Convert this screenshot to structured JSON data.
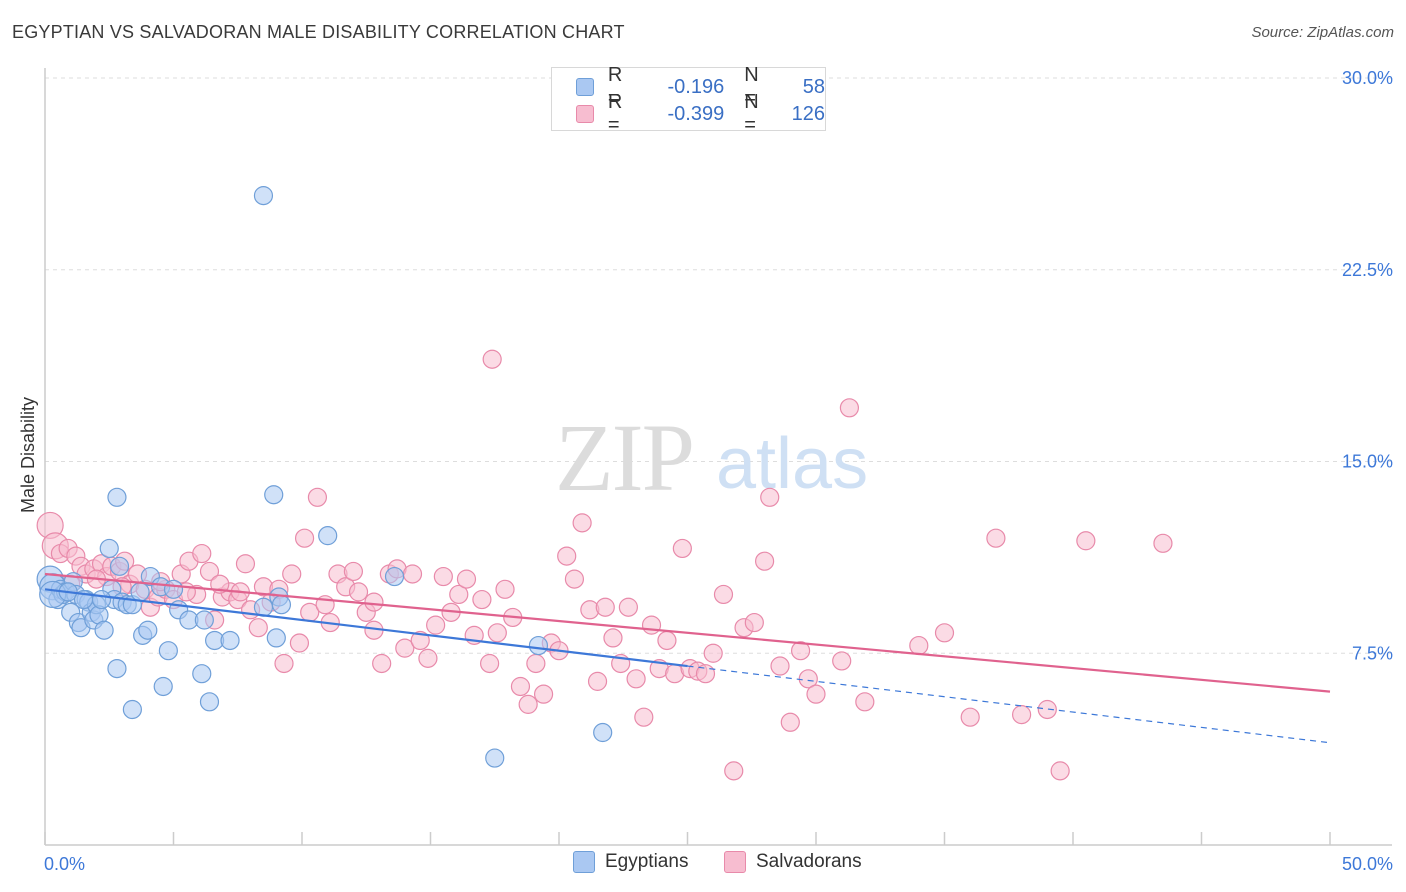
{
  "title": "EGYPTIAN VS SALVADORAN MALE DISABILITY CORRELATION CHART",
  "source": "Source: ZipAtlas.com",
  "watermark": {
    "zip": "ZIP",
    "atlas": "atlas"
  },
  "legend": {
    "rows": [
      {
        "r_label": "R =",
        "r_value": "-0.196",
        "n_label": "N =",
        "n_value": "58",
        "color": "#aac8f2",
        "border": "#6f9fd8"
      },
      {
        "r_label": "R =",
        "r_value": "-0.399",
        "n_label": "N =",
        "n_value": "126",
        "color": "#f7bdd0",
        "border": "#e88aaa"
      }
    ]
  },
  "bottom_legend": [
    {
      "label": "Egyptians",
      "color": "#aac8f2",
      "border": "#6f9fd8"
    },
    {
      "label": "Salvadorans",
      "color": "#f7bdd0",
      "border": "#e88aaa"
    }
  ],
  "chart_data": {
    "type": "scatter",
    "title": "EGYPTIAN VS SALVADORAN MALE DISABILITY CORRELATION CHART",
    "ylabel": "Male Disability",
    "xlabel": "",
    "xlim": [
      0,
      50
    ],
    "ylim": [
      0,
      30
    ],
    "x_tick_labels": [
      "0.0%",
      "50.0%"
    ],
    "y_ticks": [
      7.5,
      15.0,
      22.5,
      30.0
    ],
    "y_tick_labels": [
      "7.5%",
      "15.0%",
      "22.5%",
      "30.0%"
    ],
    "grid": true,
    "legend_position": "top-center",
    "series": [
      {
        "name": "Egyptians",
        "color": "#6f9fd8",
        "fill": "#aac8f2",
        "trend_color": "#3d78d8",
        "trend": {
          "x0": 0,
          "y0": 10.0,
          "x1": 25,
          "y1": 7.0,
          "dash_to_x": 50,
          "dash_to_y": 4.0
        },
        "points": [
          [
            0.2,
            10.4
          ],
          [
            0.3,
            10.1
          ],
          [
            0.5,
            9.6
          ],
          [
            0.6,
            10.0
          ],
          [
            0.7,
            9.8
          ],
          [
            0.8,
            9.9
          ],
          [
            1.0,
            9.1
          ],
          [
            1.1,
            10.3
          ],
          [
            1.2,
            9.8
          ],
          [
            1.3,
            8.7
          ],
          [
            1.4,
            8.5
          ],
          [
            1.6,
            9.6
          ],
          [
            1.7,
            9.5
          ],
          [
            1.8,
            9.1
          ],
          [
            1.9,
            8.8
          ],
          [
            2.0,
            9.4
          ],
          [
            2.1,
            9.0
          ],
          [
            2.3,
            8.4
          ],
          [
            2.5,
            11.6
          ],
          [
            2.6,
            10.0
          ],
          [
            2.7,
            9.6
          ],
          [
            2.9,
            10.9
          ],
          [
            3.0,
            9.5
          ],
          [
            3.2,
            9.4
          ],
          [
            3.4,
            9.4
          ],
          [
            3.8,
            8.2
          ],
          [
            4.0,
            8.4
          ],
          [
            4.1,
            10.5
          ],
          [
            4.5,
            10.1
          ],
          [
            4.8,
            7.6
          ],
          [
            5.2,
            9.2
          ],
          [
            5.6,
            8.8
          ],
          [
            6.2,
            8.8
          ],
          [
            6.6,
            8.0
          ],
          [
            7.2,
            8.0
          ],
          [
            8.5,
            9.3
          ],
          [
            9.0,
            8.1
          ],
          [
            9.1,
            9.7
          ],
          [
            9.2,
            9.4
          ],
          [
            11.0,
            12.1
          ],
          [
            13.6,
            10.5
          ],
          [
            2.8,
            13.6
          ],
          [
            8.9,
            13.7
          ],
          [
            8.5,
            25.4
          ],
          [
            2.8,
            6.9
          ],
          [
            4.6,
            6.2
          ],
          [
            6.1,
            6.7
          ],
          [
            6.4,
            5.6
          ],
          [
            3.4,
            5.3
          ],
          [
            17.5,
            3.4
          ],
          [
            21.7,
            4.4
          ],
          [
            19.2,
            7.8
          ],
          [
            0.3,
            9.8
          ],
          [
            0.9,
            9.9
          ],
          [
            1.5,
            9.6
          ],
          [
            2.2,
            9.6
          ],
          [
            3.7,
            9.9
          ],
          [
            5.0,
            10.0
          ]
        ]
      },
      {
        "name": "Salvadorans",
        "color": "#e88aaa",
        "fill": "#f7bdd0",
        "trend_color": "#e0628e",
        "trend": {
          "x0": 0,
          "y0": 10.6,
          "x1": 50,
          "y1": 6.0
        },
        "points": [
          [
            0.2,
            12.5
          ],
          [
            0.4,
            11.7
          ],
          [
            0.6,
            11.4
          ],
          [
            0.9,
            11.6
          ],
          [
            1.2,
            11.3
          ],
          [
            1.4,
            10.9
          ],
          [
            1.6,
            10.6
          ],
          [
            1.9,
            10.8
          ],
          [
            2.2,
            11.0
          ],
          [
            2.4,
            10.5
          ],
          [
            2.6,
            10.9
          ],
          [
            2.9,
            10.7
          ],
          [
            3.1,
            11.1
          ],
          [
            3.3,
            10.2
          ],
          [
            3.6,
            10.6
          ],
          [
            3.9,
            10.0
          ],
          [
            4.1,
            9.3
          ],
          [
            4.4,
            9.7
          ],
          [
            4.7,
            10.0
          ],
          [
            5.0,
            9.6
          ],
          [
            5.3,
            10.6
          ],
          [
            5.6,
            11.1
          ],
          [
            5.9,
            9.8
          ],
          [
            6.1,
            11.4
          ],
          [
            6.4,
            10.7
          ],
          [
            6.6,
            8.8
          ],
          [
            6.9,
            9.7
          ],
          [
            7.2,
            9.9
          ],
          [
            7.5,
            9.6
          ],
          [
            7.8,
            11.0
          ],
          [
            8.0,
            9.2
          ],
          [
            8.3,
            8.5
          ],
          [
            8.5,
            10.1
          ],
          [
            8.8,
            9.5
          ],
          [
            9.1,
            10.0
          ],
          [
            9.3,
            7.1
          ],
          [
            9.6,
            10.6
          ],
          [
            9.9,
            7.9
          ],
          [
            10.1,
            12.0
          ],
          [
            10.3,
            9.1
          ],
          [
            10.6,
            13.6
          ],
          [
            10.9,
            9.4
          ],
          [
            11.1,
            8.7
          ],
          [
            11.4,
            10.6
          ],
          [
            11.7,
            10.1
          ],
          [
            12.0,
            10.7
          ],
          [
            12.2,
            9.9
          ],
          [
            12.5,
            9.1
          ],
          [
            12.8,
            8.4
          ],
          [
            13.1,
            7.1
          ],
          [
            13.4,
            10.6
          ],
          [
            13.7,
            10.8
          ],
          [
            14.0,
            7.7
          ],
          [
            14.3,
            10.6
          ],
          [
            14.6,
            8.0
          ],
          [
            14.9,
            7.3
          ],
          [
            15.2,
            8.6
          ],
          [
            15.5,
            10.5
          ],
          [
            15.8,
            9.1
          ],
          [
            16.1,
            9.8
          ],
          [
            16.4,
            10.4
          ],
          [
            16.7,
            8.2
          ],
          [
            17.0,
            9.6
          ],
          [
            17.3,
            7.1
          ],
          [
            17.6,
            8.3
          ],
          [
            17.9,
            10.0
          ],
          [
            18.2,
            8.9
          ],
          [
            18.5,
            6.2
          ],
          [
            18.8,
            5.5
          ],
          [
            19.1,
            7.1
          ],
          [
            19.4,
            5.9
          ],
          [
            19.7,
            7.9
          ],
          [
            20.0,
            7.6
          ],
          [
            20.3,
            11.3
          ],
          [
            20.6,
            10.4
          ],
          [
            20.9,
            12.6
          ],
          [
            21.2,
            9.2
          ],
          [
            21.5,
            6.4
          ],
          [
            21.8,
            9.3
          ],
          [
            22.1,
            8.1
          ],
          [
            22.4,
            7.1
          ],
          [
            22.7,
            9.3
          ],
          [
            23.0,
            6.5
          ],
          [
            23.3,
            5.0
          ],
          [
            23.6,
            8.6
          ],
          [
            23.9,
            6.9
          ],
          [
            24.2,
            8.0
          ],
          [
            24.5,
            6.7
          ],
          [
            24.8,
            11.6
          ],
          [
            25.1,
            6.9
          ],
          [
            25.4,
            6.8
          ],
          [
            25.7,
            6.7
          ],
          [
            26.0,
            7.5
          ],
          [
            26.4,
            9.8
          ],
          [
            26.8,
            2.9
          ],
          [
            27.2,
            8.5
          ],
          [
            27.6,
            8.7
          ],
          [
            28.0,
            11.1
          ],
          [
            28.2,
            13.6
          ],
          [
            28.6,
            7.0
          ],
          [
            29.0,
            4.8
          ],
          [
            29.4,
            7.6
          ],
          [
            29.7,
            6.5
          ],
          [
            30.0,
            5.9
          ],
          [
            31.0,
            7.2
          ],
          [
            31.3,
            17.1
          ],
          [
            31.9,
            5.6
          ],
          [
            17.4,
            19.0
          ],
          [
            34.0,
            7.8
          ],
          [
            35.0,
            8.3
          ],
          [
            36.0,
            5.0
          ],
          [
            37.0,
            12.0
          ],
          [
            38.0,
            5.1
          ],
          [
            39.0,
            5.3
          ],
          [
            39.5,
            2.9
          ],
          [
            40.5,
            11.9
          ],
          [
            43.5,
            11.8
          ],
          [
            1.0,
            10.2
          ],
          [
            2.0,
            10.4
          ],
          [
            3.0,
            10.1
          ],
          [
            4.5,
            10.3
          ],
          [
            5.5,
            9.9
          ],
          [
            6.8,
            10.2
          ],
          [
            7.6,
            9.9
          ],
          [
            12.8,
            9.5
          ]
        ]
      }
    ]
  }
}
